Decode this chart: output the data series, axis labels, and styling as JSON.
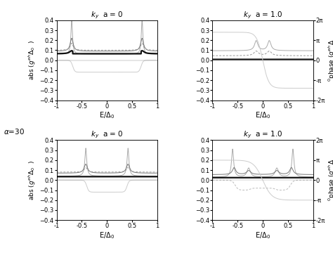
{
  "titles": [
    "k_y  a = 0",
    "k_y  a = 1.0",
    "k_y  a = 0",
    "k_y  a = 1.0"
  ],
  "alpha_label": "α=30",
  "xlim": [
    -1,
    1
  ],
  "ylim_left": [
    -0.4,
    0.4
  ],
  "ylim_right": [
    -6.28318,
    6.28318
  ],
  "yticks_left": [
    -0.4,
    -0.3,
    -0.2,
    -0.1,
    0,
    0.1,
    0.2,
    0.3,
    0.4
  ],
  "yticks_right": [
    -6.28318,
    -3.14159,
    0,
    3.14159,
    6.28318
  ],
  "ytick_labels_right": [
    "-2π",
    "-π",
    "0",
    "π",
    "2π"
  ],
  "xticks": [
    -1,
    -0.5,
    0,
    0.5,
    1
  ],
  "xtick_labels": [
    "-1",
    "-0.5",
    "0",
    "0.5",
    "1"
  ],
  "bg_color": "#ffffff",
  "plot_bg": "#f0f0f0"
}
